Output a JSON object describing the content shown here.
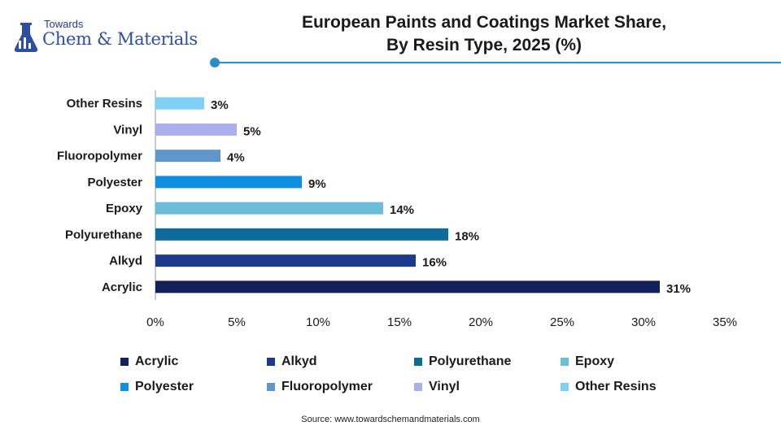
{
  "logo": {
    "line1": "Towards",
    "line2": "Chem & Materials"
  },
  "title": {
    "line1": "European Paints and Coatings Market Share,",
    "line2": "By Resin Type, 2025 (%)"
  },
  "source": "Source: www.towardschemandmaterials.com",
  "chart_data": {
    "type": "bar",
    "orientation": "horizontal",
    "title": "European Paints and Coatings Market Share, By Resin Type, 2025 (%)",
    "categories": [
      "Acrylic",
      "Alkyd",
      "Polyurethane",
      "Epoxy",
      "Polyester",
      "Fluoropolymer",
      "Vinyl",
      "Other Resins"
    ],
    "values": [
      31,
      16,
      18,
      14,
      9,
      4,
      5,
      3
    ],
    "value_labels": [
      "31%",
      "16%",
      "18%",
      "14%",
      "9%",
      "4%",
      "5%",
      "3%"
    ],
    "colors": [
      "#14205a",
      "#1c3a8c",
      "#0f6b9a",
      "#6cbdd8",
      "#0f8fe0",
      "#5f97cc",
      "#a9b0ec",
      "#7fd0f4"
    ],
    "xlim": [
      0,
      35
    ],
    "xticks": [
      "0%",
      "5%",
      "10%",
      "15%",
      "20%",
      "25%",
      "30%",
      "35%"
    ],
    "xtick_values": [
      0,
      5,
      10,
      15,
      20,
      25,
      30,
      35
    ],
    "grid": false,
    "legend_position": "bottom"
  }
}
